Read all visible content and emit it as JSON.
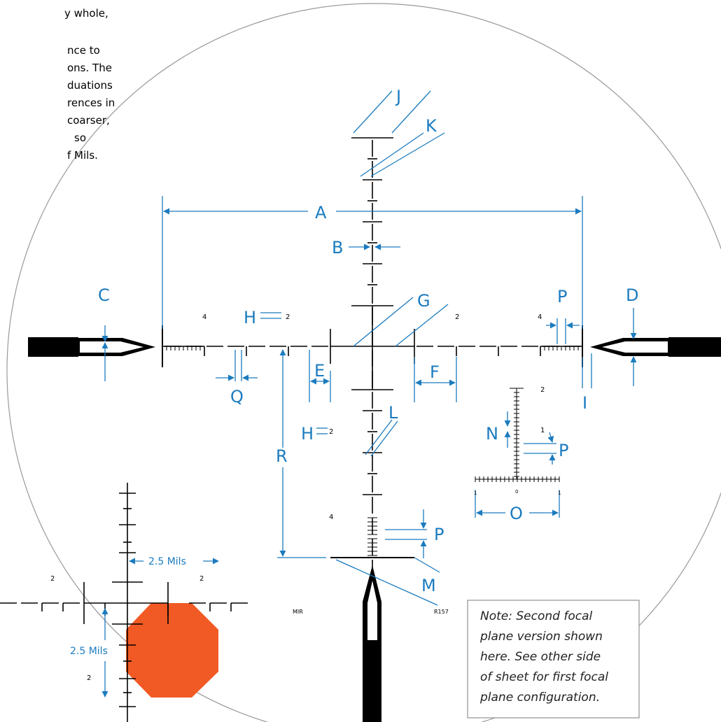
{
  "intro_text": [
    "y whole,",
    "nce to",
    "ons. The",
    "duations",
    "rences in",
    "coarser,",
    "so",
    "f Mils."
  ],
  "callouts": [
    "J",
    "K",
    "A",
    "B",
    "C",
    "D",
    "P",
    "G",
    "H",
    "E",
    "F",
    "I",
    "Q",
    "N",
    "P",
    "O",
    "L",
    "H",
    "R",
    "P",
    "M"
  ],
  "reticle_numbers": [
    "4",
    "2",
    "2",
    "4",
    "2",
    "1",
    "0",
    "1",
    "1",
    "2",
    "4"
  ],
  "reticle_marks": [
    "MIR",
    "R157"
  ],
  "inset": {
    "labels": [
      "2.5 Mils",
      "2.5 Mils"
    ],
    "numbers": [
      "2",
      "2",
      "2"
    ]
  },
  "note": [
    "Note: Second focal",
    "plane version shown",
    "here. See other side",
    "of sheet for first focal",
    "plane configuration."
  ]
}
